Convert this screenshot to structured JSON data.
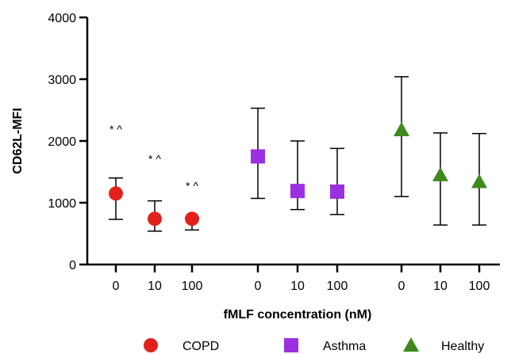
{
  "chart_data": {
    "type": "scatter",
    "title": "",
    "xlabel": "fMLF concentration (nM)",
    "ylabel": "CD62L-MFI",
    "ylim": [
      0,
      4000
    ],
    "yticks": [
      "0",
      "1000",
      "2000",
      "3000",
      "4000"
    ],
    "grid": false,
    "legend_position": "bottom",
    "series": [
      {
        "name": "COPD",
        "marker": "circle",
        "color": "#e3211c",
        "x": [
          "0",
          "10",
          "100"
        ],
        "values": [
          1150,
          740,
          740
        ],
        "err_low": [
          730,
          540,
          560
        ],
        "err_high": [
          1400,
          1030,
          760
        ],
        "annotations": [
          "* ^",
          "* ^",
          "* ^"
        ],
        "annotation_y": [
          2130,
          1650,
          1210
        ]
      },
      {
        "name": "Asthma",
        "marker": "square",
        "color": "#9b30e0",
        "x": [
          "0",
          "10",
          "100"
        ],
        "values": [
          1750,
          1190,
          1180
        ],
        "err_low": [
          1070,
          890,
          810
        ],
        "err_high": [
          2530,
          2000,
          1880
        ]
      },
      {
        "name": "Healthy",
        "marker": "triangle",
        "color": "#3f8a1d",
        "x": [
          "0",
          "10",
          "100"
        ],
        "values": [
          2180,
          1450,
          1340
        ],
        "err_low": [
          1100,
          640,
          640
        ],
        "err_high": [
          3040,
          2130,
          2120
        ]
      }
    ]
  }
}
